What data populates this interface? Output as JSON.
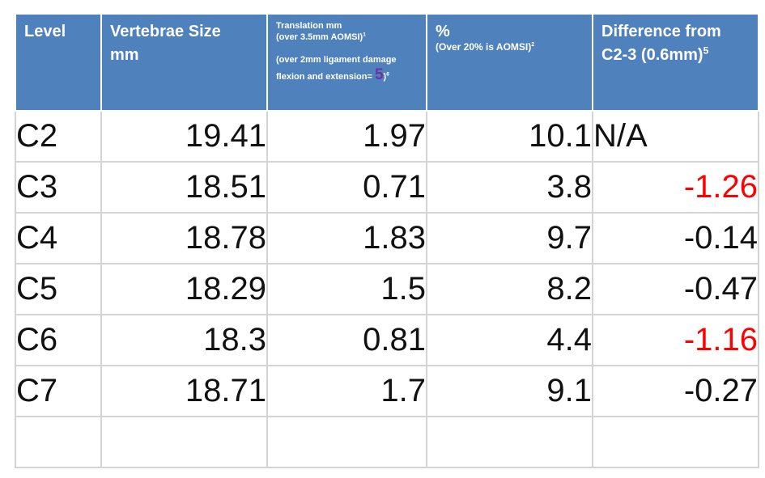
{
  "headers": {
    "level": "Level",
    "vertebrae_line1": "Vertebrae Size",
    "vertebrae_line2": "mm",
    "translation_line1": "Translation mm",
    "translation_line2": "(over 3.5mm AOMSI)",
    "translation_sup1": "1",
    "translation_line3": "(over 2mm ligament damage",
    "translation_line4": "flexion and extension=",
    "translation_five": "5",
    "translation_close": ")",
    "translation_sup2": "6",
    "percent_title": "%",
    "percent_sub": "(Over 20% is AOMSI)",
    "percent_sup": "2",
    "difference_line1": "Difference from",
    "difference_line2": "C2-3 (0.6mm)",
    "difference_sup": "5"
  },
  "rows": [
    {
      "level": "C2",
      "size": "19.41",
      "translation": "1.97",
      "percent": "10.1",
      "difference": "N/A",
      "difference_highlight": false
    },
    {
      "level": "C3",
      "size": "18.51",
      "translation": "0.71",
      "percent": "3.8",
      "difference": "-1.26",
      "difference_highlight": true
    },
    {
      "level": "C4",
      "size": "18.78",
      "translation": "1.83",
      "percent": "9.7",
      "difference": "-0.14",
      "difference_highlight": false
    },
    {
      "level": "C5",
      "size": "18.29",
      "translation": "1.5",
      "percent": "8.2",
      "difference": "-0.47",
      "difference_highlight": false
    },
    {
      "level": "C6",
      "size": "18.3",
      "translation": "0.81",
      "percent": "4.4",
      "difference": "-1.16",
      "difference_highlight": true
    },
    {
      "level": "C7",
      "size": "18.71",
      "translation": "1.7",
      "percent": "9.1",
      "difference": "-0.27",
      "difference_highlight": false
    },
    {
      "level": "",
      "size": "",
      "translation": "",
      "percent": "",
      "difference": "",
      "difference_highlight": false
    }
  ],
  "colors": {
    "header_background": "#4f81bd",
    "header_text": "#ffffff",
    "highlight_text": "#ff0000",
    "five_accent": "#7030a0",
    "grid": "#d4d4d4"
  }
}
